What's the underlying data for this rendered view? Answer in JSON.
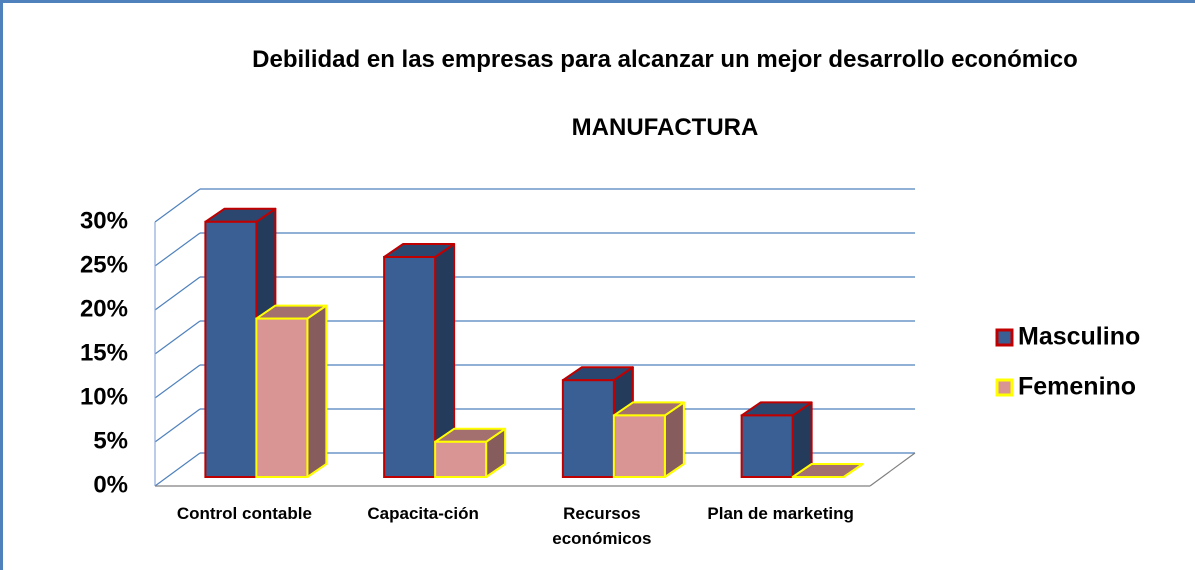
{
  "chart_data": {
    "type": "bar3d",
    "title": "Debilidad en las empresas para alcanzar un mejor desarrollo económico",
    "subtitle": "MANUFACTURA",
    "categories": [
      "Control contable",
      "Capacita-ción",
      "Recursos económicos",
      "Plan de marketing"
    ],
    "series": [
      {
        "name": "Masculino",
        "color": "#3a5f94",
        "border_color": "#c00000",
        "values": [
          29,
          25,
          11,
          7
        ]
      },
      {
        "name": "Femenino",
        "color": "#d99594",
        "border_color": "#ffff00",
        "values": [
          18,
          4,
          7,
          0
        ]
      }
    ],
    "ylim": [
      0,
      30
    ],
    "yticks": [
      {
        "value": 0,
        "label": "0%"
      },
      {
        "value": 5,
        "label": "5%"
      },
      {
        "value": 10,
        "label": "10%"
      },
      {
        "value": 15,
        "label": "15%"
      },
      {
        "value": 20,
        "label": "20%"
      },
      {
        "value": 25,
        "label": "25%"
      },
      {
        "value": 30,
        "label": "30%"
      }
    ],
    "grid": true,
    "legend": "right"
  }
}
